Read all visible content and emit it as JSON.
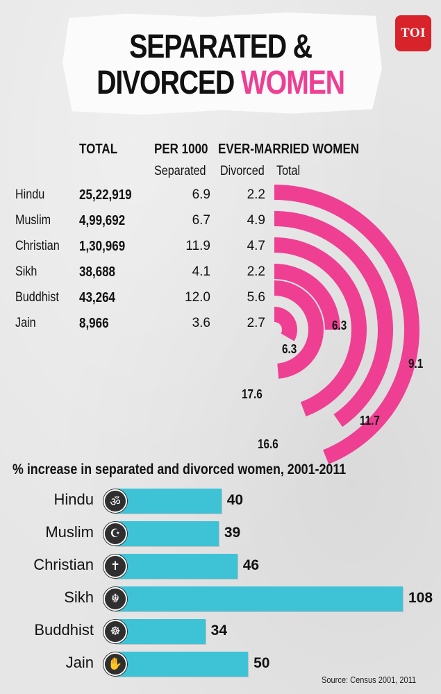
{
  "title": {
    "line1": "SEPARATED &",
    "line2a": "DIVORCED ",
    "line2b": "WOMEN"
  },
  "logo": "TOI",
  "colors": {
    "arc": "#ee3f93",
    "bar": "#3ec3d6",
    "accent": "#ee3f93"
  },
  "table": {
    "header_total": "TOTAL",
    "header_per1000": "PER 1000",
    "header_evermarried": "EVER-MARRIED WOMEN",
    "sub_separated": "Separated",
    "sub_divorced": "Divorced",
    "sub_total": "Total"
  },
  "chart_data": [
    {
      "type": "table",
      "columns": [
        "",
        "TOTAL",
        "Separated",
        "Divorced",
        "Total"
      ],
      "rows": [
        {
          "religion": "Hindu",
          "total": "25,22,919",
          "separated": "6.9",
          "divorced": "2.2",
          "per1000_total": "9.1"
        },
        {
          "religion": "Muslim",
          "total": "4,99,692",
          "separated": "6.7",
          "divorced": "4.9",
          "per1000_total": "11.7"
        },
        {
          "religion": "Christian",
          "total": "1,30,969",
          "separated": "11.9",
          "divorced": "4.7",
          "per1000_total": "16.6"
        },
        {
          "religion": "Sikh",
          "total": "38,688",
          "separated": "4.1",
          "divorced": "2.2",
          "per1000_total": "6.3"
        },
        {
          "religion": "Buddhist",
          "total": "43,264",
          "separated": "12.0",
          "divorced": "5.6",
          "per1000_total": "17.6"
        },
        {
          "religion": "Jain",
          "total": "8,966",
          "separated": "3.6",
          "divorced": "2.7",
          "per1000_total": "6.3"
        }
      ]
    },
    {
      "type": "bar",
      "title": "% increase in separated and divorced women, 2001-2011",
      "categories": [
        "Hindu",
        "Muslim",
        "Christian",
        "Sikh",
        "Buddhist",
        "Jain"
      ],
      "values": [
        40,
        39,
        46,
        108,
        34,
        50
      ],
      "icons": [
        "om-icon",
        "crescent-star-icon",
        "cross-icon",
        "khanda-icon",
        "dharma-wheel-icon",
        "jain-hand-icon"
      ],
      "icon_glyphs": [
        "ॐ",
        "☪",
        "✝",
        "☬",
        "☸",
        "✋"
      ]
    }
  ],
  "source": "Source: Census 2001, 2011"
}
